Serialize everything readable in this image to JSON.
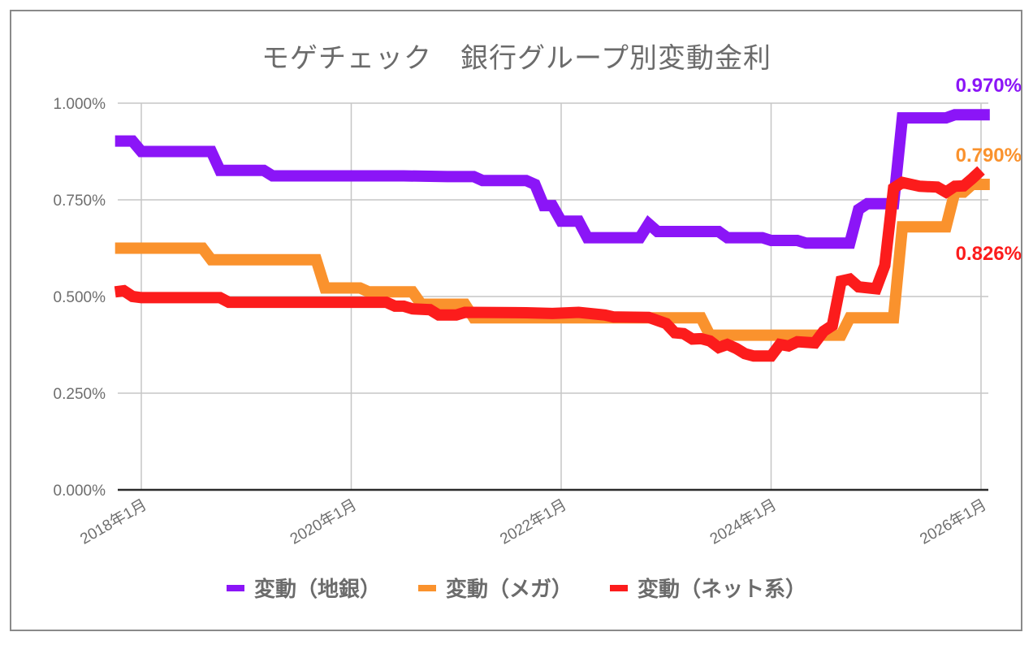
{
  "chart_data": {
    "type": "line",
    "title": "モゲチェック　銀行グループ別変動金利",
    "xlabel": "",
    "ylabel": "",
    "ylim": [
      0,
      1.0
    ],
    "y_ticks": [
      "0.000%",
      "0.250%",
      "0.500%",
      "0.750%",
      "1.000%"
    ],
    "y_tick_values": [
      0,
      0.25,
      0.5,
      0.75,
      1.0
    ],
    "x_ticks": [
      "2018年1月",
      "2020年1月",
      "2022年1月",
      "2024年1月",
      "2026年1月"
    ],
    "x_tick_months": [
      0,
      24,
      48,
      72,
      96
    ],
    "x_range_months": [
      -3,
      97
    ],
    "grid": true,
    "legend_position": "bottom",
    "series": [
      {
        "name": "変動（地銀）",
        "color": "#8b15f7",
        "end_label": "0.970%",
        "points": [
          [
            -3,
            0.902
          ],
          [
            -1,
            0.902
          ],
          [
            0,
            0.875
          ],
          [
            8,
            0.875
          ],
          [
            9,
            0.826
          ],
          [
            14,
            0.826
          ],
          [
            15,
            0.812
          ],
          [
            30,
            0.812
          ],
          [
            35,
            0.81
          ],
          [
            38,
            0.81
          ],
          [
            39,
            0.8
          ],
          [
            44,
            0.8
          ],
          [
            45,
            0.79
          ],
          [
            46,
            0.735
          ],
          [
            47,
            0.735
          ],
          [
            48,
            0.695
          ],
          [
            50,
            0.695
          ],
          [
            51,
            0.652
          ],
          [
            57,
            0.652
          ],
          [
            58,
            0.688
          ],
          [
            59,
            0.668
          ],
          [
            66,
            0.668
          ],
          [
            67,
            0.652
          ],
          [
            71,
            0.652
          ],
          [
            72,
            0.645
          ],
          [
            75,
            0.645
          ],
          [
            76,
            0.638
          ],
          [
            81,
            0.638
          ],
          [
            82,
            0.725
          ],
          [
            83,
            0.74
          ],
          [
            86,
            0.74
          ],
          [
            87,
            0.962
          ],
          [
            92,
            0.962
          ],
          [
            93,
            0.97
          ],
          [
            97,
            0.97
          ]
        ]
      },
      {
        "name": "変動（メガ）",
        "color": "#fa922d",
        "end_label": "0.790%",
        "points": [
          [
            -3,
            0.625
          ],
          [
            7,
            0.625
          ],
          [
            8,
            0.595
          ],
          [
            20,
            0.595
          ],
          [
            21,
            0.522
          ],
          [
            25,
            0.522
          ],
          [
            26,
            0.512
          ],
          [
            31,
            0.512
          ],
          [
            32,
            0.48
          ],
          [
            37,
            0.48
          ],
          [
            38,
            0.445
          ],
          [
            64,
            0.445
          ],
          [
            65,
            0.4
          ],
          [
            80,
            0.4
          ],
          [
            81,
            0.445
          ],
          [
            86,
            0.445
          ],
          [
            87,
            0.68
          ],
          [
            92,
            0.68
          ],
          [
            93,
            0.77
          ],
          [
            94,
            0.77
          ],
          [
            95,
            0.79
          ],
          [
            97,
            0.79
          ]
        ]
      },
      {
        "name": "変動（ネット系）",
        "color": "#fc1c1c",
        "end_label": "0.826%",
        "points": [
          [
            -3,
            0.512
          ],
          [
            -2,
            0.515
          ],
          [
            -1,
            0.5
          ],
          [
            0,
            0.497
          ],
          [
            9,
            0.497
          ],
          [
            10,
            0.485
          ],
          [
            28,
            0.485
          ],
          [
            29,
            0.475
          ],
          [
            30,
            0.475
          ],
          [
            31,
            0.468
          ],
          [
            33,
            0.466
          ],
          [
            34,
            0.452
          ],
          [
            36,
            0.452
          ],
          [
            37,
            0.459
          ],
          [
            44,
            0.458
          ],
          [
            47,
            0.456
          ],
          [
            50,
            0.459
          ],
          [
            53,
            0.452
          ],
          [
            54,
            0.447
          ],
          [
            58,
            0.446
          ],
          [
            60,
            0.43
          ],
          [
            61,
            0.406
          ],
          [
            62,
            0.404
          ],
          [
            63,
            0.39
          ],
          [
            64,
            0.391
          ],
          [
            65,
            0.385
          ],
          [
            66,
            0.368
          ],
          [
            67,
            0.376
          ],
          [
            68,
            0.366
          ],
          [
            69,
            0.352
          ],
          [
            70,
            0.346
          ],
          [
            72,
            0.346
          ],
          [
            73,
            0.376
          ],
          [
            74,
            0.372
          ],
          [
            75,
            0.383
          ],
          [
            77,
            0.38
          ],
          [
            78,
            0.41
          ],
          [
            79,
            0.425
          ],
          [
            80,
            0.54
          ],
          [
            81,
            0.545
          ],
          [
            82,
            0.525
          ],
          [
            84,
            0.52
          ],
          [
            85,
            0.58
          ],
          [
            86,
            0.78
          ],
          [
            87,
            0.795
          ],
          [
            89,
            0.785
          ],
          [
            91,
            0.783
          ],
          [
            92,
            0.77
          ],
          [
            93,
            0.785
          ],
          [
            94,
            0.786
          ],
          [
            95,
            0.805
          ],
          [
            96,
            0.826
          ]
        ]
      }
    ]
  }
}
